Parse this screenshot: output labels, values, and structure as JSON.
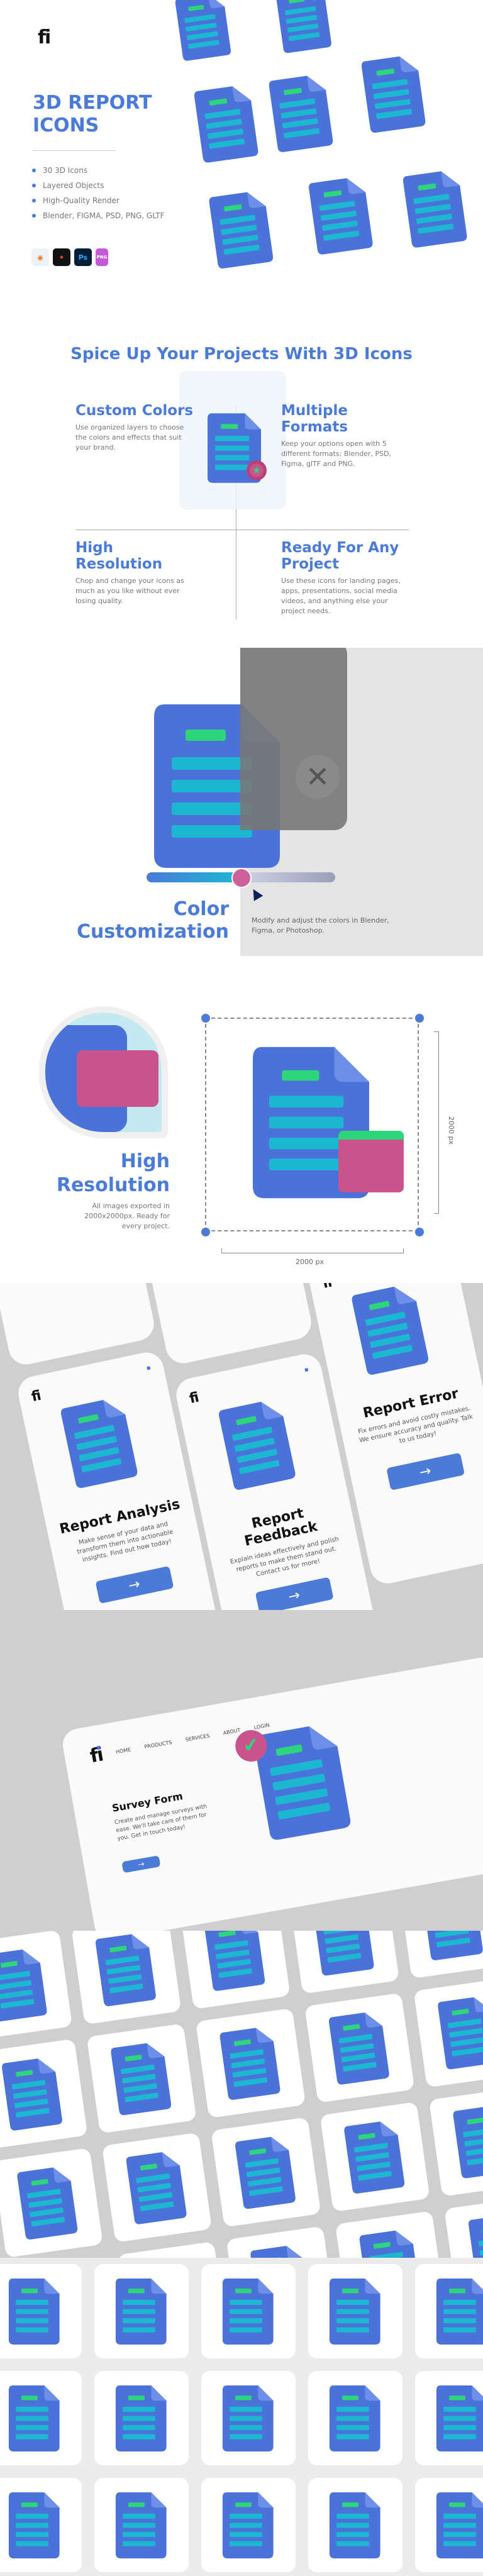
{
  "brand": {
    "logo": "fi",
    "accent": "#4a7bd8",
    "icon_blue": "#4a72d9",
    "icon_cyan": "#1cb8d2",
    "icon_green": "#2dd67a",
    "icon_pink": "#c9538a"
  },
  "hero": {
    "title_line1": "3D REPORT",
    "title_line2": "ICONS",
    "features": [
      "30 3D Icons",
      "Layered Objects",
      "High-Quality Render",
      "Blender, FIGMA, PSD, PNG, GLTF"
    ],
    "software": [
      {
        "name": "blender-icon"
      },
      {
        "name": "figma-icon"
      },
      {
        "name": "photoshop-icon",
        "label": "Ps"
      },
      {
        "name": "png-file-icon",
        "label": "PNG"
      }
    ]
  },
  "features_section": {
    "heading": "Spice Up Your Projects With 3D Icons",
    "items": [
      {
        "title": "Custom Colors",
        "text": "Use organized layers to choose the colors and effects that suit your brand."
      },
      {
        "title": "Multiple Formats",
        "text": "Keep your options open with 5 different formats: Blender, PSD, Figma, glTF and PNG."
      },
      {
        "title": "High Resolution",
        "text": "Chop and change your icons as much as you like without ever losing quality."
      },
      {
        "title": "Ready For Any Project",
        "text": "Use these icons for landing pages, apps, presentations, social media videos, and anything else your project needs."
      }
    ]
  },
  "color_section": {
    "title_line1": "Color",
    "title_line2": "Customization",
    "text": "Modify and adjust the colors in Blender, Figma, or Photoshop.",
    "slider_value": 0.5
  },
  "resolution_section": {
    "title_line1": "High",
    "title_line2": "Resolution",
    "text": "All images exported in 2000x2000px. Ready for every project.",
    "width_label": "2000 px",
    "height_label": "2000 px"
  },
  "phones": [
    {
      "title": "Report Analysis",
      "text": "Make sense of your data and transform them into actionable insights. Find out how today!",
      "active_dot": 0
    },
    {
      "title": "Report Feedback",
      "text": "Explain ideas effectively and polish reports to make them stand out. Contact us for more!",
      "active_dot": 1
    },
    {
      "title": "Report Error",
      "text": "Fix errors and avoid costly mistakes. We ensure accuracy and quality. Talk to us today!",
      "active_dot": 2
    }
  ],
  "website": {
    "nav": [
      "HOME",
      "PRODUCTS",
      "SERVICES",
      "ABOUT",
      "LOGIN"
    ],
    "title": "Survey Form",
    "text": "Create and manage surveys with ease. We'll take care of them for you. Get in touch today!"
  }
}
